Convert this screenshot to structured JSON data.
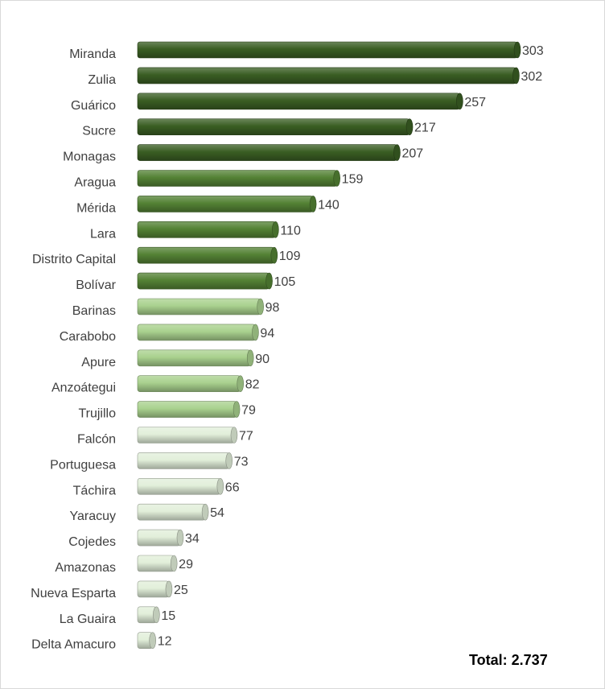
{
  "chart_data": {
    "type": "bar",
    "orientation": "horizontal",
    "categories": [
      "Miranda",
      "Zulia",
      "Guárico",
      "Sucre",
      "Monagas",
      "Aragua",
      "Mérida",
      "Lara",
      "Distrito Capital",
      "Bolívar",
      "Barinas",
      "Carabobo",
      "Apure",
      "Anzoátegui",
      "Trujillo",
      "Falcón",
      "Portuguesa",
      "Táchira",
      "Yaracuy",
      "Cojedes",
      "Amazonas",
      "Nueva Esparta",
      "La Guaira",
      "Delta Amacuro"
    ],
    "values": [
      303,
      302,
      257,
      217,
      207,
      159,
      140,
      110,
      109,
      105,
      98,
      94,
      90,
      82,
      79,
      77,
      73,
      66,
      54,
      34,
      29,
      25,
      15,
      12
    ],
    "value_labels": [
      "303",
      "302",
      "257",
      "217",
      "207",
      "159",
      "140",
      "110",
      "109",
      "105",
      "98",
      "94",
      "90",
      "82",
      "79",
      "77",
      "73",
      "66",
      "54",
      "34",
      "29",
      "25",
      "15",
      "12"
    ],
    "color_groups": [
      {
        "from": 0,
        "to": 4,
        "color": "#3a5e23"
      },
      {
        "from": 5,
        "to": 9,
        "color": "#548235"
      },
      {
        "from": 10,
        "to": 14,
        "color": "#a9d18e"
      },
      {
        "from": 15,
        "to": 23,
        "color": "#e2efda"
      }
    ],
    "grid": false,
    "legend": "none"
  },
  "annotation": {
    "total_label": "Total: 2.737"
  }
}
